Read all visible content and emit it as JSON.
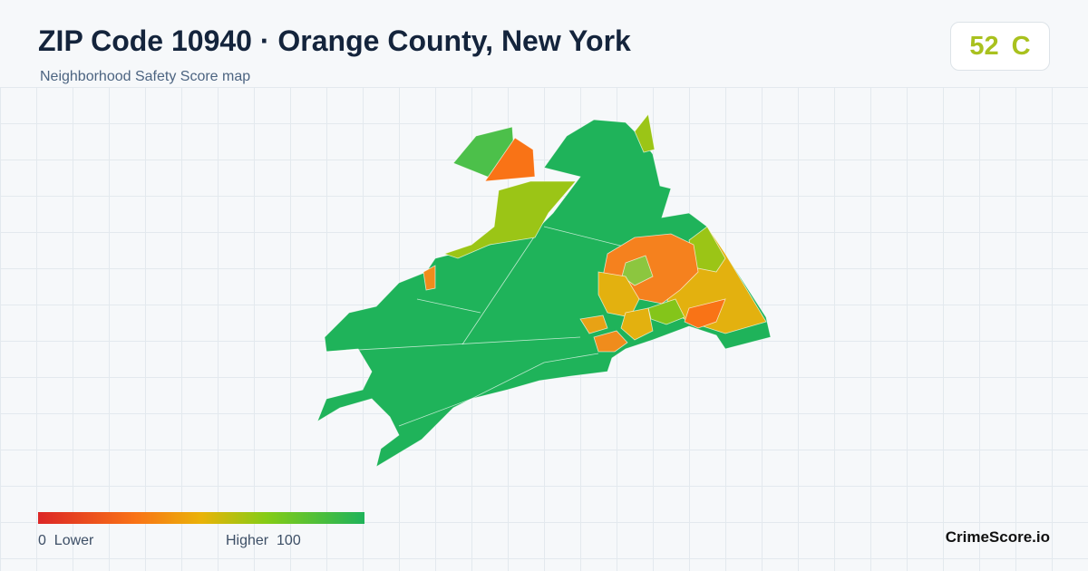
{
  "header": {
    "title": "ZIP Code 10940 · Orange County, New York",
    "subtitle": "Neighborhood Safety Score map"
  },
  "score": {
    "value": 52,
    "grade": "C"
  },
  "legend": {
    "min": 0,
    "min_label": "Lower",
    "max_label": "Higher",
    "max": 100
  },
  "brand": "CrimeScore.io"
}
